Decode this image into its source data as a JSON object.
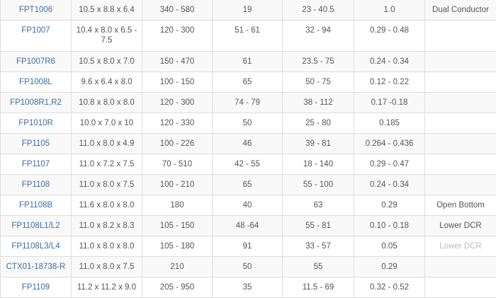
{
  "colors": {
    "link": "#3a6ea5",
    "text": "#555555",
    "stripe": "#f9f9f9",
    "border": "#dddddd"
  },
  "rows": [
    {
      "part": "FPT1006",
      "dims": "10.5 x 8.8 x 6.4",
      "c3": "340 - 580",
      "c4": "19",
      "c5": "23 - 40.5",
      "c6": "1.0",
      "note": "Dual Conductor"
    },
    {
      "part": "FP1007",
      "dims": "10.4 x 8.0 x 6.5 - 7.5",
      "c3": "120 - 300",
      "c4": "51 - 61",
      "c5": "32 - 94",
      "c6": "0.29 - 0.48",
      "note": ""
    },
    {
      "part": "FP1007R6",
      "dims": "10.5 x 8.0 x 7.0",
      "c3": "150 - 470",
      "c4": "61",
      "c5": "23.5 - 75",
      "c6": "0.24 - 0.34",
      "note": ""
    },
    {
      "part": "FP1008L",
      "dims": "9.6 x 6.4 x 8.0",
      "c3": "100 - 150",
      "c4": "65",
      "c5": "50 - 75",
      "c6": "0.12 - 0.22",
      "note": ""
    },
    {
      "part": "FP1008R1,R2",
      "dims": "10.8 x 8.0 x 8.0",
      "c3": "120 - 300",
      "c4": "74 - 79",
      "c5": "38 - 112",
      "c6": "0.17 -0.18",
      "note": ""
    },
    {
      "part": "FP1010R",
      "dims": "10.0 x 7.0 x 10",
      "c3": "120 - 330",
      "c4": "50",
      "c5": "25 - 80",
      "c6": "0.185",
      "note": ""
    },
    {
      "part": "FP1105",
      "dims": "11.0 x 8.0 x 4.9",
      "c3": "100 - 226",
      "c4": "46",
      "c5": "39 - 81",
      "c6": "0.264 - 0.436",
      "note": ""
    },
    {
      "part": "FP1107",
      "dims": "11.0 x 7.2 x 7.5",
      "c3": "70 - 510",
      "c4": "42 - 55",
      "c5": "18 - 140",
      "c6": "0.29 - 0.47",
      "note": ""
    },
    {
      "part": "FP1108",
      "dims": "11.0 x 8.0 x 7.5",
      "c3": "100 - 210",
      "c4": "65",
      "c5": "55 - 100",
      "c6": "0.24 - 0.34",
      "note": ""
    },
    {
      "part": "FP1108B",
      "dims": "11.6 x 8.0 x 8.0",
      "c3": "180",
      "c4": "40",
      "c5": "63",
      "c6": "0.29",
      "note": "Open Bottom"
    },
    {
      "part": "FP1108L1/L2",
      "dims": "11.0 x 8.2 x 8.3",
      "c3": "105 - 150",
      "c4": "48 -64",
      "c5": "55 - 81",
      "c6": "0.10 - 0.18",
      "note": "Lower DCR"
    },
    {
      "part": "FP1108L3/L4",
      "dims": "11.0 x 8.0 x 8.0",
      "c3": "105 - 180",
      "c4": "91",
      "c5": "33 - 57",
      "c6": "0.05",
      "note": "Lower DCR"
    },
    {
      "part": "CTX01-18738-R",
      "dims": "11.0 x 8.0 x 7.5",
      "c3": "210",
      "c4": "50",
      "c5": "55",
      "c6": "0.29",
      "note": ""
    },
    {
      "part": "FP1109",
      "dims": "11.2 x 11.2 x 9.0",
      "c3": "205 - 950",
      "c4": "35",
      "c5": "11.5 - 69",
      "c6": "0.32 - 0.52",
      "note": ""
    }
  ]
}
